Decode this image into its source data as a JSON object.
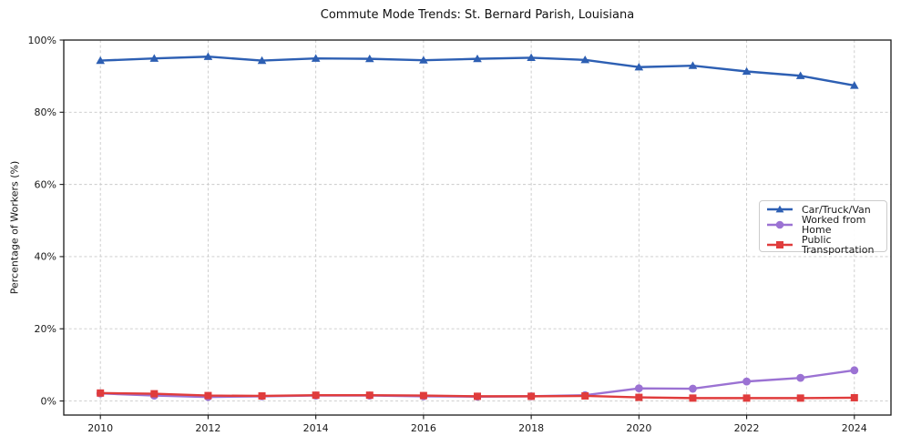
{
  "chart_data": {
    "type": "line",
    "title": "Commute Mode Trends: St. Bernard Parish, Louisiana",
    "xlabel": "",
    "ylabel": "Percentage of Workers (%)",
    "x": [
      2010,
      2011,
      2012,
      2013,
      2014,
      2015,
      2016,
      2017,
      2018,
      2019,
      2020,
      2021,
      2022,
      2023,
      2024
    ],
    "series": [
      {
        "name": "Car/Truck/Van",
        "color": "#2d5fb3",
        "marker": "triangle",
        "values": [
          94.3,
          94.9,
          95.4,
          94.3,
          94.9,
          94.8,
          94.4,
          94.8,
          95.1,
          94.5,
          92.5,
          92.9,
          91.3,
          90.1,
          87.4
        ]
      },
      {
        "name": "Worked from Home",
        "color": "#9b72d3",
        "marker": "circle",
        "values": [
          2.1,
          1.5,
          1.1,
          1.3,
          1.5,
          1.5,
          1.3,
          1.2,
          1.3,
          1.6,
          3.5,
          3.4,
          5.4,
          6.4,
          8.5
        ]
      },
      {
        "name": "Public Transportation",
        "color": "#e03c3c",
        "marker": "square",
        "values": [
          2.2,
          2.0,
          1.5,
          1.4,
          1.6,
          1.6,
          1.5,
          1.3,
          1.3,
          1.4,
          1.0,
          0.8,
          0.8,
          0.8,
          0.9
        ]
      }
    ],
    "x_ticks": [
      2010,
      2012,
      2014,
      2016,
      2018,
      2020,
      2022,
      2024
    ],
    "x_tick_labels": [
      "2010",
      "2012",
      "2014",
      "2016",
      "2018",
      "2020",
      "2022",
      "2024"
    ],
    "y_ticks": [
      0,
      20,
      40,
      60,
      80,
      100
    ],
    "y_tick_labels": [
      "0%",
      "20%",
      "40%",
      "60%",
      "80%",
      "100%"
    ],
    "xlim": [
      2009.32,
      2024.68
    ],
    "ylim": [
      -3.9,
      100
    ],
    "grid": true,
    "grid_style": "dashed",
    "legend_position": "center-right"
  },
  "colors": {
    "grid": "#c9c9c9",
    "axis": "#1a1a1a",
    "background": "#ffffff"
  }
}
